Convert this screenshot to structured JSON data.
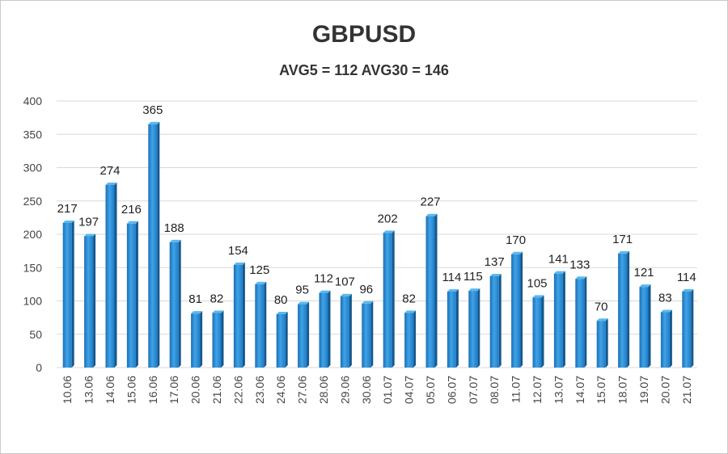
{
  "chart_data": {
    "type": "bar",
    "title": "GBPUSD",
    "subtitle": "AVG5 = 112 AVG30 = 146",
    "categories": [
      "10.06",
      "13.06",
      "14.06",
      "15.06",
      "16.06",
      "17.06",
      "20.06",
      "21.06",
      "22.06",
      "23.06",
      "24.06",
      "27.06",
      "28.06",
      "29.06",
      "30.06",
      "01.07",
      "04.07",
      "05.07",
      "06.07",
      "07.07",
      "08.07",
      "11.07",
      "12.07",
      "13.07",
      "14.07",
      "15.07",
      "18.07",
      "19.07",
      "20.07",
      "21.07"
    ],
    "values": [
      217,
      197,
      274,
      216,
      365,
      188,
      81,
      82,
      154,
      125,
      80,
      95,
      112,
      107,
      96,
      202,
      82,
      227,
      114,
      115,
      137,
      170,
      105,
      141,
      133,
      70,
      171,
      121,
      83,
      114
    ],
    "ylim": [
      0,
      400
    ],
    "yticks": [
      0,
      50,
      100,
      150,
      200,
      250,
      300,
      350,
      400
    ],
    "grid": true,
    "bar_color": "#2a8fd8",
    "bar_dark_color": "#14588f",
    "data_labels": true
  }
}
